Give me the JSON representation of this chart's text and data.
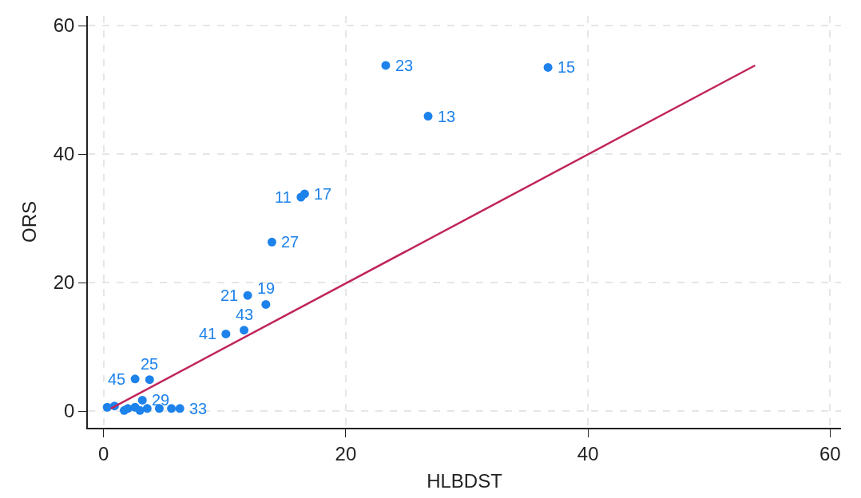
{
  "chart_data": {
    "type": "scatter",
    "xlabel": "HLBDST",
    "ylabel": "ORS",
    "xlim": [
      -1.3,
      60.9
    ],
    "ylim": [
      -2.6,
      61.5
    ],
    "xticks": [
      0,
      20,
      40,
      60
    ],
    "yticks": [
      0,
      20,
      40,
      60
    ],
    "grid": true,
    "series": [
      {
        "color": "#1e82eb",
        "marker": "circle",
        "x": [
          23.3,
          36.7,
          26.8,
          16.6,
          16.3,
          13.9,
          11.9,
          13.4,
          11.6,
          10.1,
          2.6,
          3.8,
          3.2,
          6.3,
          0.3,
          0.9,
          2.0,
          2.6,
          3.6,
          4.6,
          5.6,
          1.7,
          3.0
        ],
        "values": [
          53.8,
          53.5,
          45.9,
          33.8,
          33.3,
          26.3,
          18.0,
          16.6,
          12.6,
          12.0,
          5.0,
          4.9,
          1.7,
          0.4,
          0.6,
          0.8,
          0.4,
          0.6,
          0.4,
          0.4,
          0.4,
          0.1,
          0.1
        ]
      },
      {
        "type": "line",
        "color": "#c0245c",
        "x": [
          0.6,
          53.8
        ],
        "values": [
          0.4,
          53.8
        ]
      }
    ],
    "annotations": [
      {
        "text": "23",
        "x": 23.3,
        "y": 53.8
      },
      {
        "text": "15",
        "x": 36.7,
        "y": 53.5
      },
      {
        "text": "13",
        "x": 26.8,
        "y": 45.9
      },
      {
        "text": "17",
        "x": 16.6,
        "y": 33.8
      },
      {
        "text": "11",
        "x": 16.3,
        "y": 33.3
      },
      {
        "text": "27",
        "x": 13.9,
        "y": 26.3
      },
      {
        "text": "21",
        "x": 11.9,
        "y": 18.0
      },
      {
        "text": "19",
        "x": 13.4,
        "y": 16.6
      },
      {
        "text": "43",
        "x": 11.6,
        "y": 12.6
      },
      {
        "text": "41",
        "x": 10.1,
        "y": 12.0
      },
      {
        "text": "45",
        "x": 2.6,
        "y": 5.0
      },
      {
        "text": "25",
        "x": 3.8,
        "y": 4.9
      },
      {
        "text": "29",
        "x": 3.2,
        "y": 1.7
      },
      {
        "text": "33",
        "x": 6.3,
        "y": 0.4
      }
    ]
  }
}
